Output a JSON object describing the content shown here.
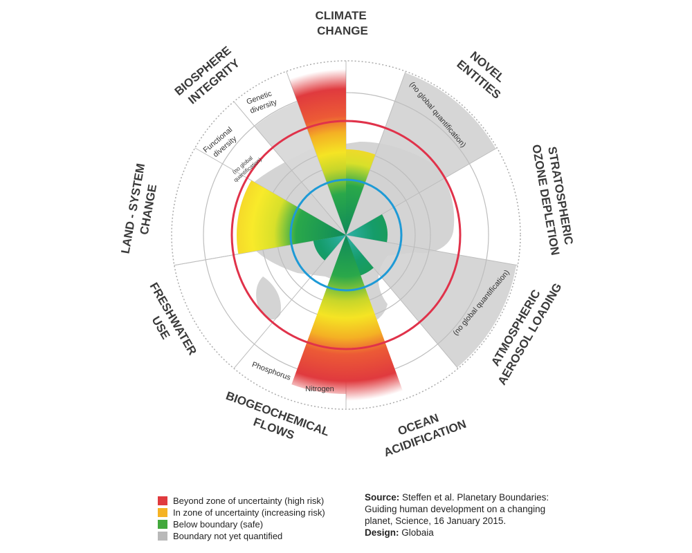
{
  "boundaries": [
    {
      "id": "climate",
      "lines": [
        "CLIMATE",
        "CHANGE"
      ]
    },
    {
      "id": "novel",
      "lines": [
        "NOVEL",
        "ENTITIES"
      ]
    },
    {
      "id": "ozone",
      "lines": [
        "STRATOSPHERIC",
        "OZONE DEPLETION"
      ]
    },
    {
      "id": "aerosol",
      "lines": [
        "ATMOSPHERIC",
        "AEROSOL LOADING"
      ]
    },
    {
      "id": "ocean",
      "lines": [
        "OCEAN",
        "ACIDIFICATION"
      ]
    },
    {
      "id": "biogeo",
      "lines": [
        "BIOGEOCHEMICAL",
        "FLOWS"
      ]
    },
    {
      "id": "freshwater",
      "lines": [
        "FRESHWATER",
        "USE"
      ]
    },
    {
      "id": "land",
      "lines": [
        "LAND - SYSTEM",
        "CHANGE"
      ]
    },
    {
      "id": "biosphere",
      "lines": [
        "BIOSPHERE",
        "INTEGRITY"
      ]
    }
  ],
  "sublabels": {
    "genetic_1": "Genetic",
    "genetic_2": "diversity",
    "functional_1": "Functional",
    "functional_2": "diversity",
    "noglobal_small_1": "(no global",
    "noglobal_small_2": "quantification)",
    "novel_note": "(no global quantification)",
    "aerosol_note": "(no global quantification)",
    "phosphorus": "Phosphorus",
    "nitrogen": "Nitrogen"
  },
  "status_levels": {
    "climate": "uncertainty",
    "novel": "not-quantified",
    "ozone": "safe",
    "aerosol": "not-quantified",
    "ocean": "safe",
    "nitrogen": "high-risk",
    "phosphorus": "high-risk",
    "freshwater": "safe",
    "land": "uncertainty",
    "functional_diversity": "not-quantified",
    "genetic_diversity": "high-risk"
  },
  "colors": {
    "high_risk": "#e03a3e",
    "uncertainty": "#f3d22a",
    "safe": "#1fa653",
    "not_quantified": "#c8c8c8",
    "boundary_ring": "#e0324a",
    "safe_ring": "#1e9ad6"
  },
  "legend": [
    {
      "color": "#e03a3e",
      "label": "Beyond zone of uncertainty (high risk)"
    },
    {
      "color": "#f5b324",
      "label": "In zone of uncertainty (increasing risk)"
    },
    {
      "color": "#43a83c",
      "label": "Below boundary (safe)"
    },
    {
      "color": "#b9b9b9",
      "label": "Boundary not yet quantified"
    }
  ],
  "source": {
    "source_label": "Source:",
    "source_text": "Steffen et al. Planetary Boundaries: Guiding human development on a changing planet, Science, 16 January 2015.",
    "design_label": "Design:",
    "design_text": "Globaia"
  }
}
